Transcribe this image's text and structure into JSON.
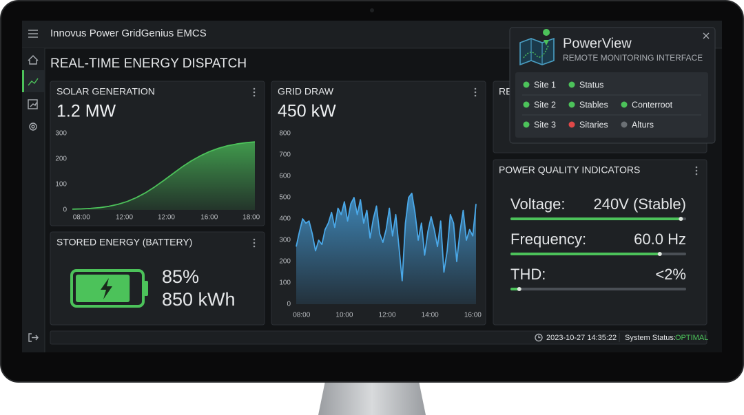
{
  "header": {
    "title": "Innovus Power GridGenius EMCS"
  },
  "page": {
    "title": "REAL-TIME ENERGY DISPATCH"
  },
  "chart_data": [
    {
      "type": "area",
      "title": "SOLAR GENERATION",
      "subtitle": "1.2 MW",
      "color": "#4cc25a",
      "x": [
        0,
        1,
        2,
        3,
        4,
        5,
        6,
        7,
        8,
        9,
        10,
        11,
        12,
        13,
        14,
        15,
        16,
        17,
        18,
        19,
        20
      ],
      "values": [
        3,
        4,
        6,
        9,
        14,
        22,
        33,
        48,
        67,
        90,
        115,
        142,
        168,
        192,
        212,
        229,
        242,
        252,
        259,
        264,
        267
      ],
      "xlim": [
        0,
        20
      ],
      "xticks": [
        {
          "value": 1,
          "label": "08:00"
        },
        {
          "value": 5.7,
          "label": "12:00"
        },
        {
          "value": 10.3,
          "label": "12:00"
        },
        {
          "value": 15,
          "label": "16:00"
        },
        {
          "value": 19.6,
          "label": "18:00"
        }
      ],
      "ylim": [
        0,
        300
      ],
      "yticks": [
        0,
        100,
        200,
        300
      ],
      "grid": false
    },
    {
      "type": "area",
      "title": "GRID DRAW",
      "subtitle": "450 kW",
      "color": "#4aa8e8",
      "x": [
        7.75,
        7.9,
        8.05,
        8.2,
        8.35,
        8.5,
        8.65,
        8.8,
        8.95,
        9.1,
        9.25,
        9.4,
        9.55,
        9.7,
        9.85,
        10,
        10.15,
        10.3,
        10.45,
        10.6,
        10.75,
        10.9,
        11.05,
        11.2,
        11.35,
        11.5,
        11.65,
        11.8,
        11.95,
        12.1,
        12.25,
        12.4,
        12.55,
        12.7,
        12.85,
        13,
        13.15,
        13.3,
        13.45,
        13.6,
        13.75,
        13.9,
        14.05,
        14.2,
        14.35,
        14.5,
        14.65,
        14.8,
        14.95,
        15.1,
        15.25,
        15.4,
        15.55,
        15.7,
        15.85,
        16,
        16.15
      ],
      "values": [
        270,
        340,
        400,
        380,
        390,
        330,
        250,
        300,
        280,
        350,
        380,
        430,
        360,
        450,
        420,
        480,
        390,
        470,
        500,
        420,
        490,
        380,
        440,
        310,
        400,
        460,
        330,
        290,
        350,
        450,
        320,
        420,
        270,
        110,
        380,
        500,
        520,
        430,
        300,
        380,
        230,
        340,
        410,
        350,
        270,
        390,
        150,
        250,
        420,
        380,
        200,
        340,
        440,
        300,
        350,
        320,
        470
      ],
      "xlim": [
        7.75,
        16.15
      ],
      "xticks": [
        {
          "value": 8,
          "label": "08:00"
        },
        {
          "value": 10,
          "label": "10:00"
        },
        {
          "value": 12,
          "label": "12:00"
        },
        {
          "value": 14,
          "label": "14:00"
        },
        {
          "value": 16,
          "label": "16:00"
        }
      ],
      "ylim": [
        0,
        800
      ],
      "yticks": [
        0,
        100,
        200,
        300,
        400,
        500,
        600,
        700,
        800
      ],
      "grid": false
    }
  ],
  "battery": {
    "title": "STORED ENERGY (BATTERY)",
    "percent": 85,
    "percent_label": "85%",
    "energy": "850 kWh",
    "color": "#4cc25a"
  },
  "hidden_panel": {
    "title": "RE"
  },
  "power_quality": {
    "title": "POWER QUALITY INDICATORS",
    "color": "#4cc25a",
    "indicators": [
      {
        "name": "Voltage:",
        "value": "240V (Stable)",
        "level": 97
      },
      {
        "name": "Frequency:",
        "value": "60.0 Hz",
        "level": 85
      },
      {
        "name": "THD:",
        "value": "<2%",
        "level": 5
      }
    ]
  },
  "footer": {
    "timestamp": "2023-10-27 14:35:22",
    "status_label": "System Status:",
    "status": "OPTIMAL"
  },
  "popup": {
    "title": "PowerView",
    "subtitle": "REMOTE MONITORING INTERFACE",
    "rows": [
      [
        {
          "label": "Site 1",
          "color": "#4cc25a"
        },
        {
          "label": "Status",
          "color": "#4cc25a"
        }
      ],
      [
        {
          "label": "Site 2",
          "color": "#4cc25a"
        },
        {
          "label": "Stables",
          "color": "#4cc25a"
        },
        {
          "label": "Conterroot",
          "color": "#4cc25a"
        }
      ],
      [
        {
          "label": "Site 3",
          "color": "#4cc25a"
        },
        {
          "label": "Sitaries",
          "color": "#e04848"
        },
        {
          "label": "Alturs",
          "color": "#6b7075"
        }
      ]
    ]
  }
}
